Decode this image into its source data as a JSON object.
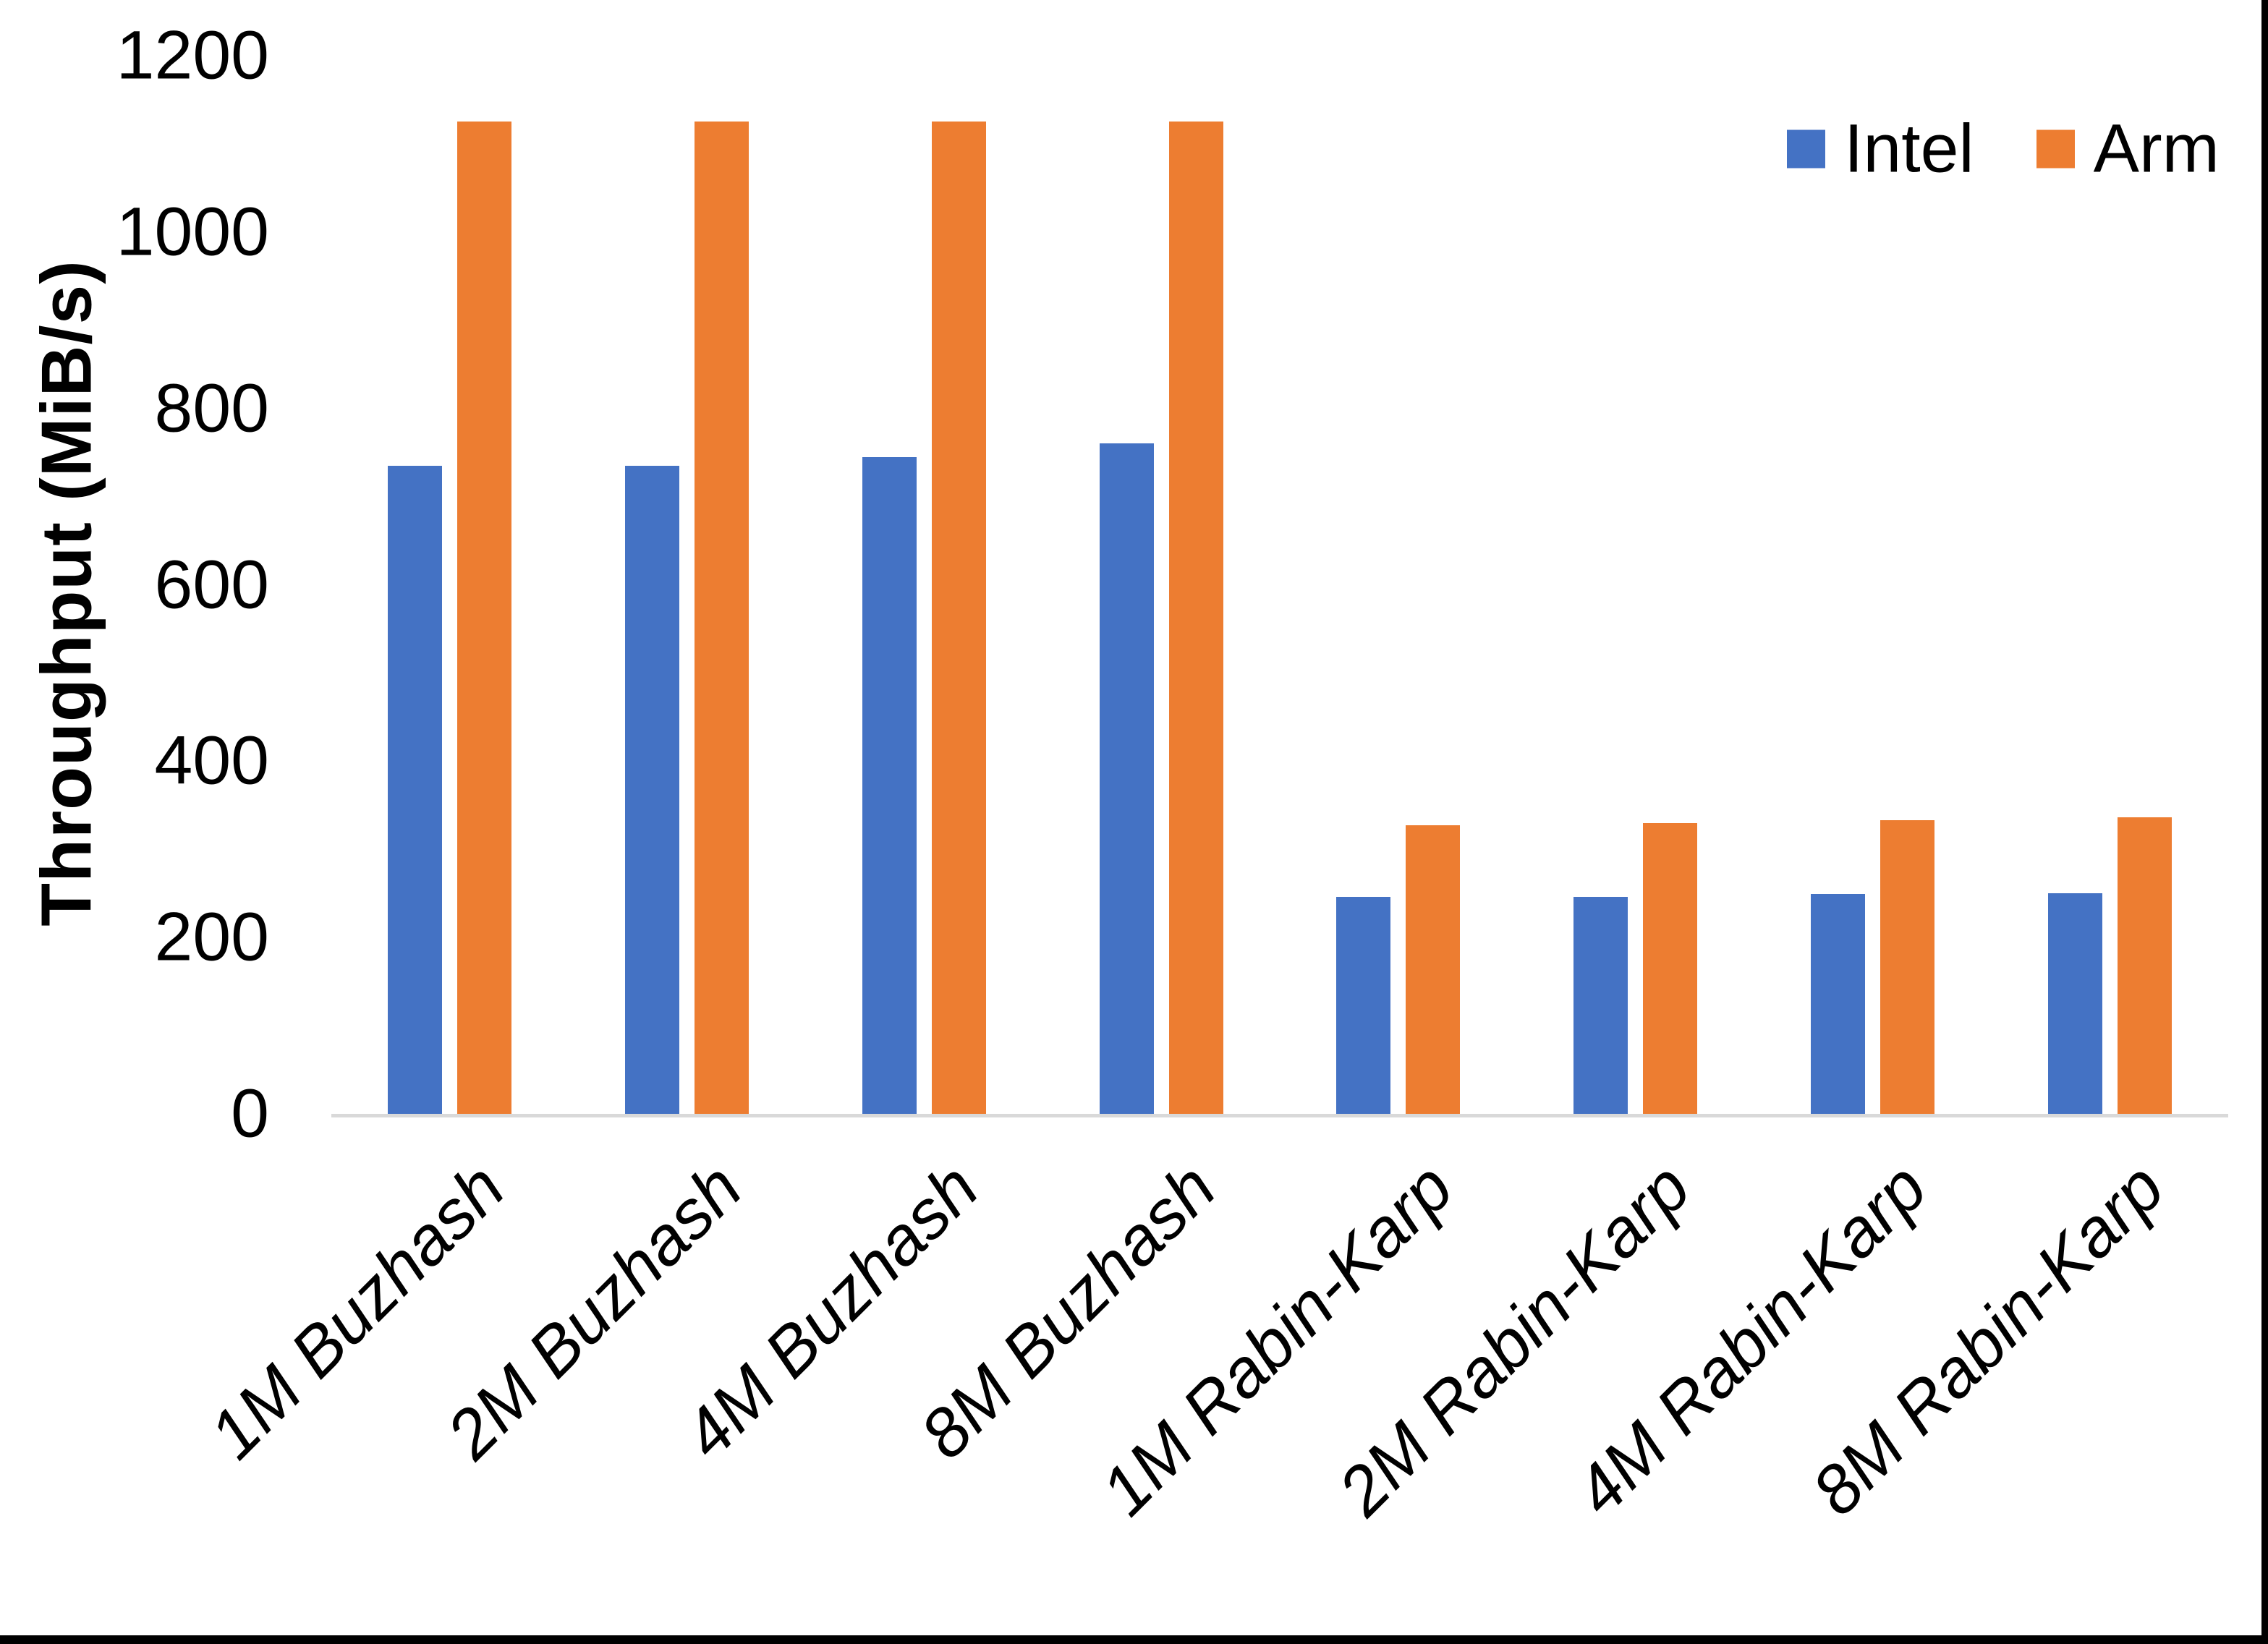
{
  "chart_data": {
    "type": "bar",
    "title": "",
    "xlabel": "",
    "ylabel": "Throughput (MiB/s)",
    "ylim": [
      0,
      1200
    ],
    "yticks": [
      0,
      200,
      400,
      600,
      800,
      1000,
      1200
    ],
    "grid": false,
    "legend_position": "top-right",
    "categories": [
      "1M Buzhash",
      "2M Buzhash",
      "4M Buzhash",
      "8M Buzhash",
      "1M Rabin-Karp",
      "2M Rabin-Karp",
      "4M Rabin-Karp",
      "8M Rabin-Karp"
    ],
    "series": [
      {
        "name": "Intel",
        "color": "#4472C4",
        "values": [
          735,
          735,
          745,
          760,
          246,
          246,
          249,
          250
        ]
      },
      {
        "name": "Arm",
        "color": "#ED7D31",
        "values": [
          1125,
          1125,
          1125,
          1125,
          327,
          330,
          333,
          336
        ]
      }
    ]
  },
  "axis": {
    "baseline_color": "#d9d9d9",
    "text_color": "#000000"
  },
  "frame": {
    "border_color": "#000000"
  }
}
